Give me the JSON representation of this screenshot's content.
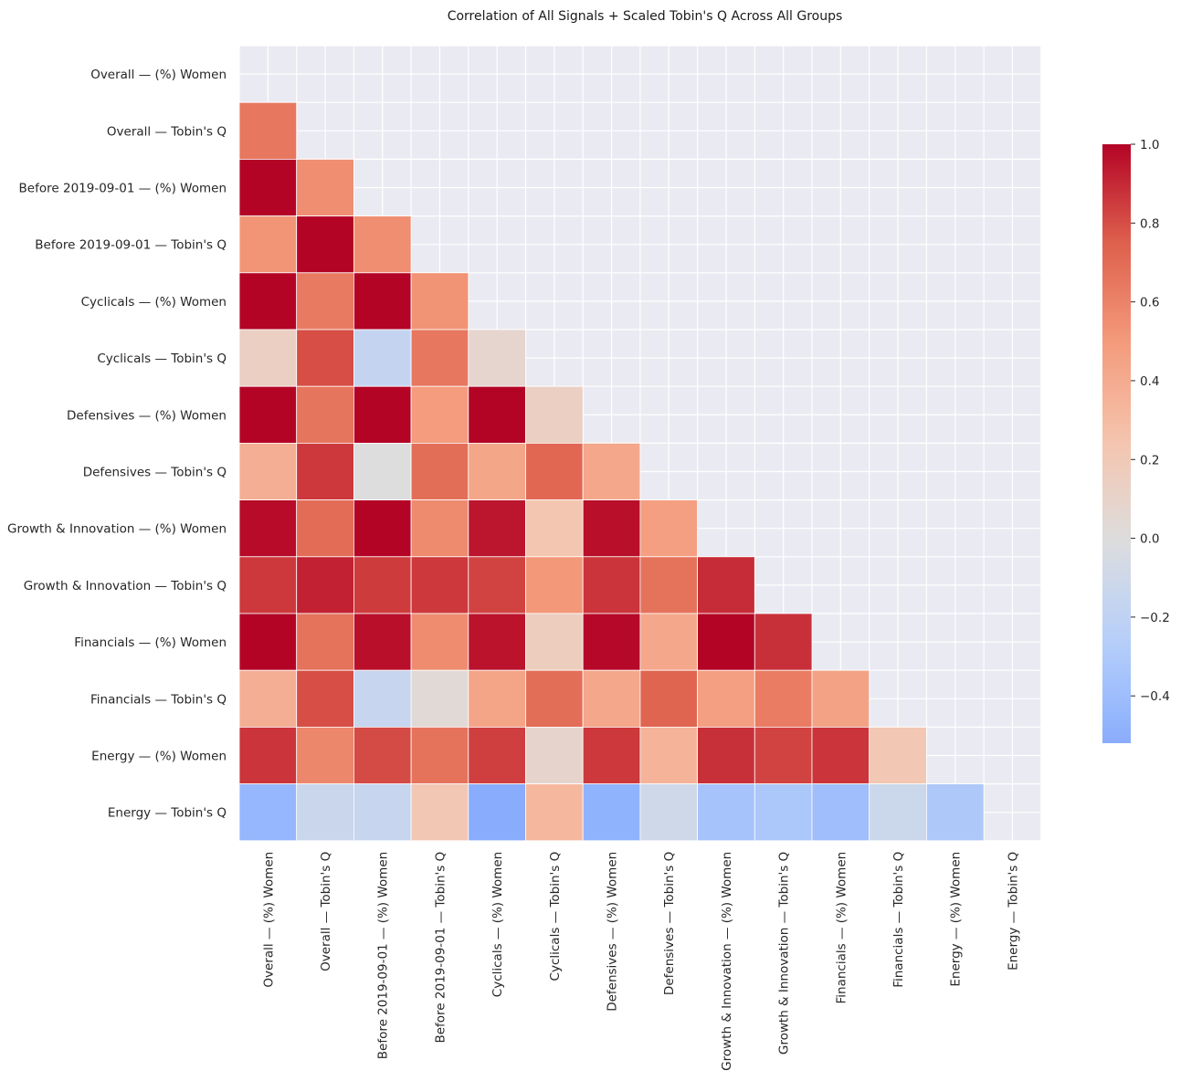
{
  "chart_data": {
    "type": "heatmap",
    "title": "Correlation of All Signals + Scaled Tobin's Q Across All Groups",
    "xlabel": "",
    "ylabel": "",
    "labels": [
      "Overall — (%) Women",
      "Overall — Tobin's Q",
      "Before 2019-09-01 — (%) Women",
      "Before 2019-09-01 — Tobin's Q",
      "Cyclicals — (%) Women",
      "Cyclicals — Tobin's Q",
      "Defensives — (%) Women",
      "Defensives — Tobin's Q",
      "Growth & Innovation — (%) Women",
      "Growth & Innovation — Tobin's Q",
      "Financials — (%) Women",
      "Financials — Tobin's Q",
      "Energy — (%) Women",
      "Energy — Tobin's Q"
    ],
    "mask": "upper-triangle-including-diagonal",
    "matrix": [
      [],
      [
        0.65
      ],
      [
        1.0,
        0.55
      ],
      [
        0.52,
        1.0,
        0.55
      ],
      [
        1.0,
        0.64,
        1.0,
        0.53
      ],
      [
        0.14,
        0.8,
        -0.17,
        0.65,
        0.08
      ],
      [
        1.0,
        0.66,
        1.0,
        0.49,
        1.0,
        0.14
      ],
      [
        0.38,
        0.86,
        0.0,
        0.69,
        0.43,
        0.72,
        0.42
      ],
      [
        0.98,
        0.7,
        1.0,
        0.57,
        0.95,
        0.23,
        0.97,
        0.47
      ],
      [
        0.86,
        0.92,
        0.85,
        0.86,
        0.83,
        0.51,
        0.87,
        0.67,
        0.89
      ],
      [
        1.0,
        0.67,
        0.97,
        0.56,
        0.96,
        0.16,
        0.99,
        0.42,
        1.0,
        0.88
      ],
      [
        0.38,
        0.8,
        -0.15,
        0.04,
        0.44,
        0.69,
        0.42,
        0.73,
        0.47,
        0.63,
        0.45
      ],
      [
        0.87,
        0.58,
        0.81,
        0.67,
        0.84,
        0.09,
        0.86,
        0.35,
        0.88,
        0.83,
        0.87,
        0.22
      ],
      [
        -0.45,
        -0.13,
        -0.15,
        0.22,
        -0.52,
        0.32,
        -0.48,
        -0.1,
        -0.35,
        -0.32,
        -0.39,
        -0.12,
        -0.31
      ]
    ],
    "vmin": -0.52,
    "vmax": 1.0,
    "center": 0.0,
    "colormap": "coolwarm",
    "colorbar": {
      "ticks": [
        1.0,
        0.8,
        0.6,
        0.4,
        0.2,
        0.0,
        -0.2,
        -0.4
      ],
      "tick_labels": [
        "1.0",
        "0.8",
        "0.6",
        "0.4",
        "0.2",
        "0.0",
        "−0.2",
        "−0.4"
      ]
    },
    "grid": true,
    "background_color": "#eaeaf2",
    "grid_color": "#ffffff"
  }
}
